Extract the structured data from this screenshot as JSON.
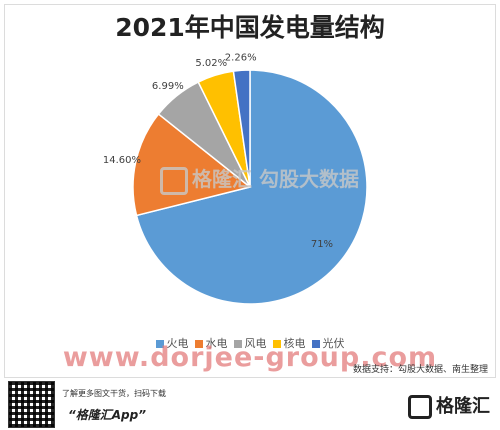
{
  "chart_data": {
    "type": "pie",
    "title": "2021年中国发电量结构",
    "categories": [
      "火电",
      "水电",
      "风电",
      "核电",
      "光伏"
    ],
    "values": [
      71,
      14.6,
      6.99,
      5.02,
      2.26
    ],
    "labels": [
      "71%",
      "14.60%",
      "6.99%",
      "5.02%",
      "2.26%"
    ],
    "colors": [
      "#5b9bd5",
      "#ed7d31",
      "#a5a5a5",
      "#ffc000",
      "#4472c4"
    ],
    "legend_position": "bottom"
  },
  "source": "数据支持：勾股大数据、南生整理",
  "watermark_banner": "www.dorjee-group.com",
  "watermark_center": "格隆汇  勾股大数据",
  "footer": {
    "note": "了解更多图文干货，扫码下载",
    "app": "“格隆汇App”",
    "logo": "格隆汇"
  }
}
